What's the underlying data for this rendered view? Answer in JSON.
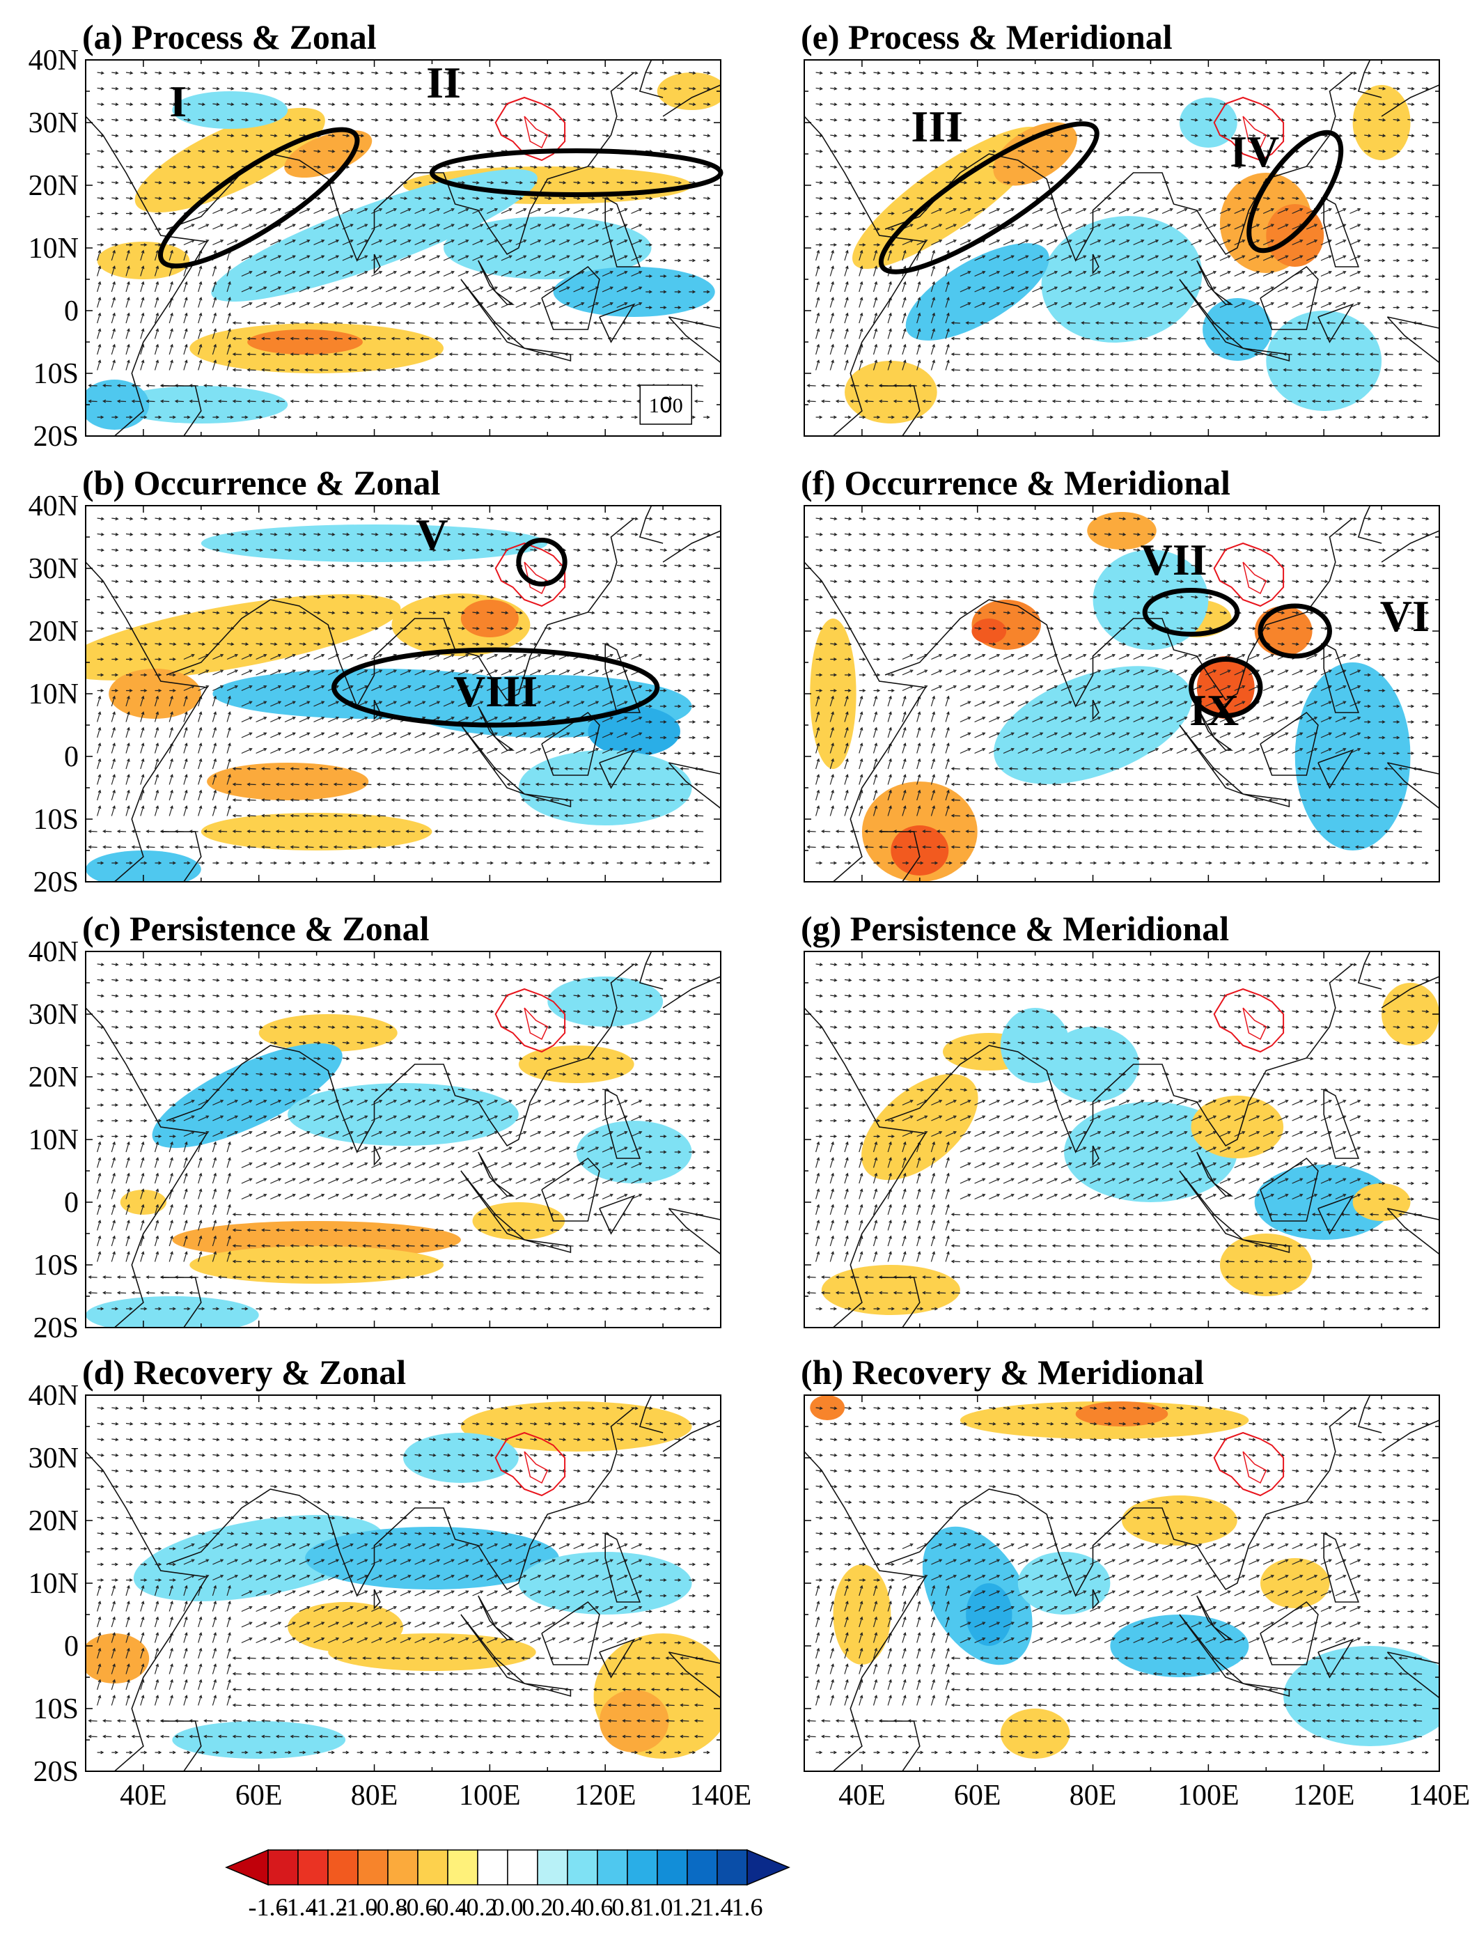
{
  "figure": {
    "lon_ticks": [
      "40E",
      "60E",
      "80E",
      "100E",
      "120E",
      "140E"
    ],
    "lat_ticks": [
      "40N",
      "30N",
      "20N",
      "10N",
      "0",
      "10S",
      "20S"
    ],
    "reference_vector": "10⃗0",
    "colorbar": {
      "levels": [
        "-1.6",
        "-1.4",
        "-1.2",
        "-1.0",
        "-0.8",
        "-0.6",
        "-0.4",
        "-0.2",
        "0.0",
        "0.2",
        "0.4",
        "0.6",
        "0.8",
        "1.0",
        "1.2",
        "1.4",
        "1.6"
      ],
      "colors": [
        "#d7191c",
        "#ea3323",
        "#f25a1f",
        "#f7842b",
        "#fbaa3c",
        "#fdd14d",
        "#fff17a",
        "#ffffff",
        "#ffffff",
        "#b8f1f7",
        "#7fe1f4",
        "#4fc8ef",
        "#2aaee7",
        "#128ed8",
        "#0a6bc4",
        "#0a4ea8"
      ],
      "arrow_left": "#c0000a",
      "arrow_right": "#0a2a8a"
    },
    "panels": [
      {
        "id": "a",
        "title": "(a) Process & Zonal",
        "show_lon": false,
        "show_lat": true,
        "ref_vector": true,
        "annotations": [
          {
            "label": "I"
          },
          {
            "label": "II"
          }
        ]
      },
      {
        "id": "e",
        "title": "(e) Process & Meridional",
        "show_lon": false,
        "show_lat": false,
        "ref_vector": false,
        "annotations": [
          {
            "label": "III"
          },
          {
            "label": "IV"
          }
        ]
      },
      {
        "id": "b",
        "title": "(b) Occurrence & Zonal",
        "show_lon": false,
        "show_lat": true,
        "ref_vector": false,
        "annotations": [
          {
            "label": "V"
          },
          {
            "label": "VIII"
          }
        ]
      },
      {
        "id": "f",
        "title": "(f) Occurrence  & Meridional",
        "show_lon": false,
        "show_lat": false,
        "ref_vector": false,
        "annotations": [
          {
            "label": "VII"
          },
          {
            "label": "VI"
          },
          {
            "label": "IX"
          }
        ]
      },
      {
        "id": "c",
        "title": "(c) Persistence &  Zonal",
        "show_lon": false,
        "show_lat": true,
        "ref_vector": false,
        "annotations": []
      },
      {
        "id": "g",
        "title": "(g) Persistence & Meridional",
        "show_lon": false,
        "show_lat": false,
        "ref_vector": false,
        "annotations": []
      },
      {
        "id": "d",
        "title": "(d) Recovery  & Zonal",
        "show_lon": true,
        "show_lat": true,
        "ref_vector": false,
        "annotations": []
      },
      {
        "id": "h",
        "title": "(h) Recovery & Meridional",
        "show_lon": true,
        "show_lat": false,
        "ref_vector": false,
        "annotations": []
      }
    ]
  }
}
